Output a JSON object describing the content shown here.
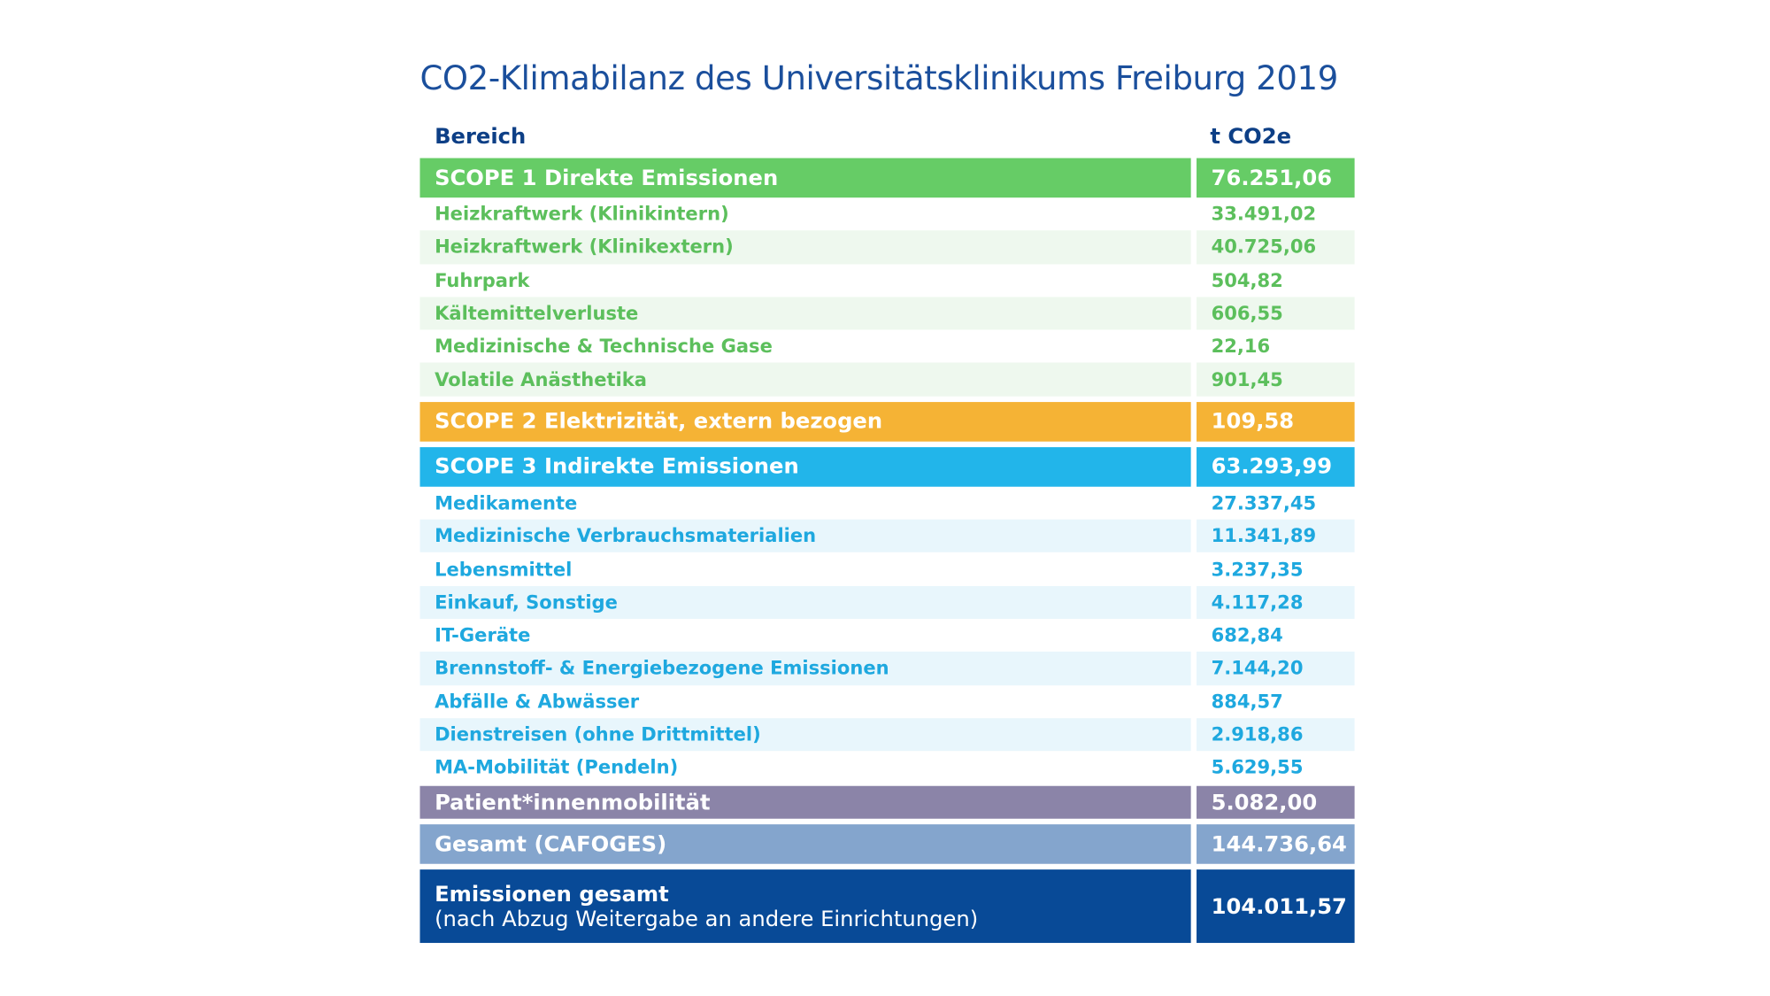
{
  "title": "CO2-Klimabilanz des Universitätsklinikums Freiburg 2019",
  "header": {
    "area": "Bereich",
    "unit": "t CO2e"
  },
  "sections": [
    {
      "label": "SCOPE 1 Direkte Emissionen",
      "value": "76.251,06",
      "items": [
        {
          "label": "Heizkraftwerk (Klinikintern)",
          "value": "33.491,02"
        },
        {
          "label": "Heizkraftwerk (Klinikextern)",
          "value": "40.725,06"
        },
        {
          "label": "Fuhrpark",
          "value": "504,82"
        },
        {
          "label": "Kältemittelverluste",
          "value": "606,55"
        },
        {
          "label": "Medizinische & Technische Gase",
          "value": "22,16"
        },
        {
          "label": "Volatile Anästhetika",
          "value": "901,45"
        }
      ]
    },
    {
      "label": "SCOPE 2 Elektrizität, extern bezogen",
      "value": "109,58"
    },
    {
      "label": "SCOPE 3 Indirekte Emissionen",
      "value": "63.293,99",
      "items": [
        {
          "label": "Medikamente",
          "value": "27.337,45"
        },
        {
          "label": "Medizinische Verbrauchsmaterialien",
          "value": "11.341,89"
        },
        {
          "label": "Lebensmittel",
          "value": "3.237,35"
        },
        {
          "label": "Einkauf, Sonstige",
          "value": "4.117,28"
        },
        {
          "label": "IT-Geräte",
          "value": "682,84"
        },
        {
          "label": "Brennstoff- & Energiebezogene Emissionen",
          "value": "7.144,20"
        },
        {
          "label": "Abfälle & Abwässer",
          "value": "884,57"
        },
        {
          "label": "Dienstreisen (ohne Drittmittel)",
          "value": "2.918,86"
        },
        {
          "label": "MA-Mobilität (Pendeln)",
          "value": "5.629,55"
        }
      ]
    },
    {
      "label": "Patient*innenmobilität",
      "value": "5.082,00"
    },
    {
      "label": "Gesamt (CAFOGES)",
      "value": "144.736,64"
    },
    {
      "label": "Emissionen gesamt",
      "note": "(nach Abzug Weitergabe an andere Einrichtungen)",
      "value": "104.011,57"
    }
  ]
}
